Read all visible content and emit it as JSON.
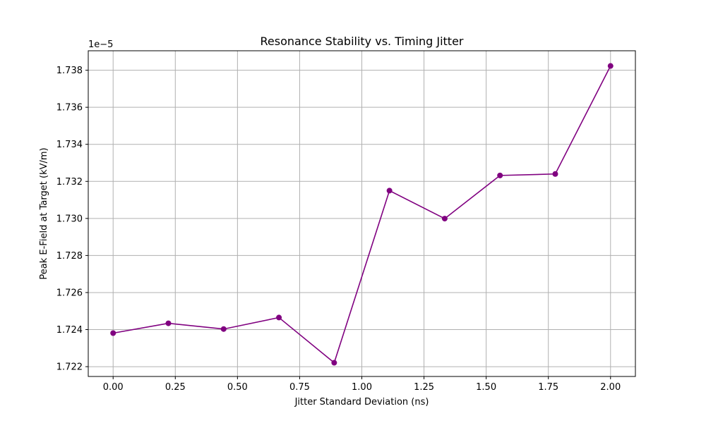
{
  "chart_data": {
    "type": "line",
    "title": "Resonance Stability vs. Timing Jitter",
    "xlabel": "Jitter Standard Deviation (ns)",
    "ylabel": "Peak E-Field at Target (kV/m)",
    "offset_label": "1e−5",
    "xlim": [
      -0.1,
      2.1
    ],
    "ylim": [
      1.72147,
      1.73905
    ],
    "x_ticks": [
      0.0,
      0.25,
      0.5,
      0.75,
      1.0,
      1.25,
      1.5,
      1.75,
      2.0
    ],
    "x_tick_labels": [
      "0.00",
      "0.25",
      "0.50",
      "0.75",
      "1.00",
      "1.25",
      "1.50",
      "1.75",
      "2.00"
    ],
    "y_ticks": [
      1.722,
      1.724,
      1.726,
      1.728,
      1.73,
      1.732,
      1.734,
      1.736,
      1.738
    ],
    "y_tick_labels": [
      "1.722",
      "1.724",
      "1.726",
      "1.728",
      "1.730",
      "1.732",
      "1.734",
      "1.736",
      "1.738"
    ],
    "grid": true,
    "series": [
      {
        "color": "#800080",
        "marker": "circle",
        "x": [
          0.0,
          0.2222,
          0.4444,
          0.6667,
          0.8889,
          1.1111,
          1.3333,
          1.5556,
          1.7778,
          2.0
        ],
        "y": [
          1.72381,
          1.72434,
          1.72403,
          1.72465,
          1.72221,
          1.7315,
          1.72999,
          1.73232,
          1.7324,
          1.73823
        ]
      }
    ]
  }
}
